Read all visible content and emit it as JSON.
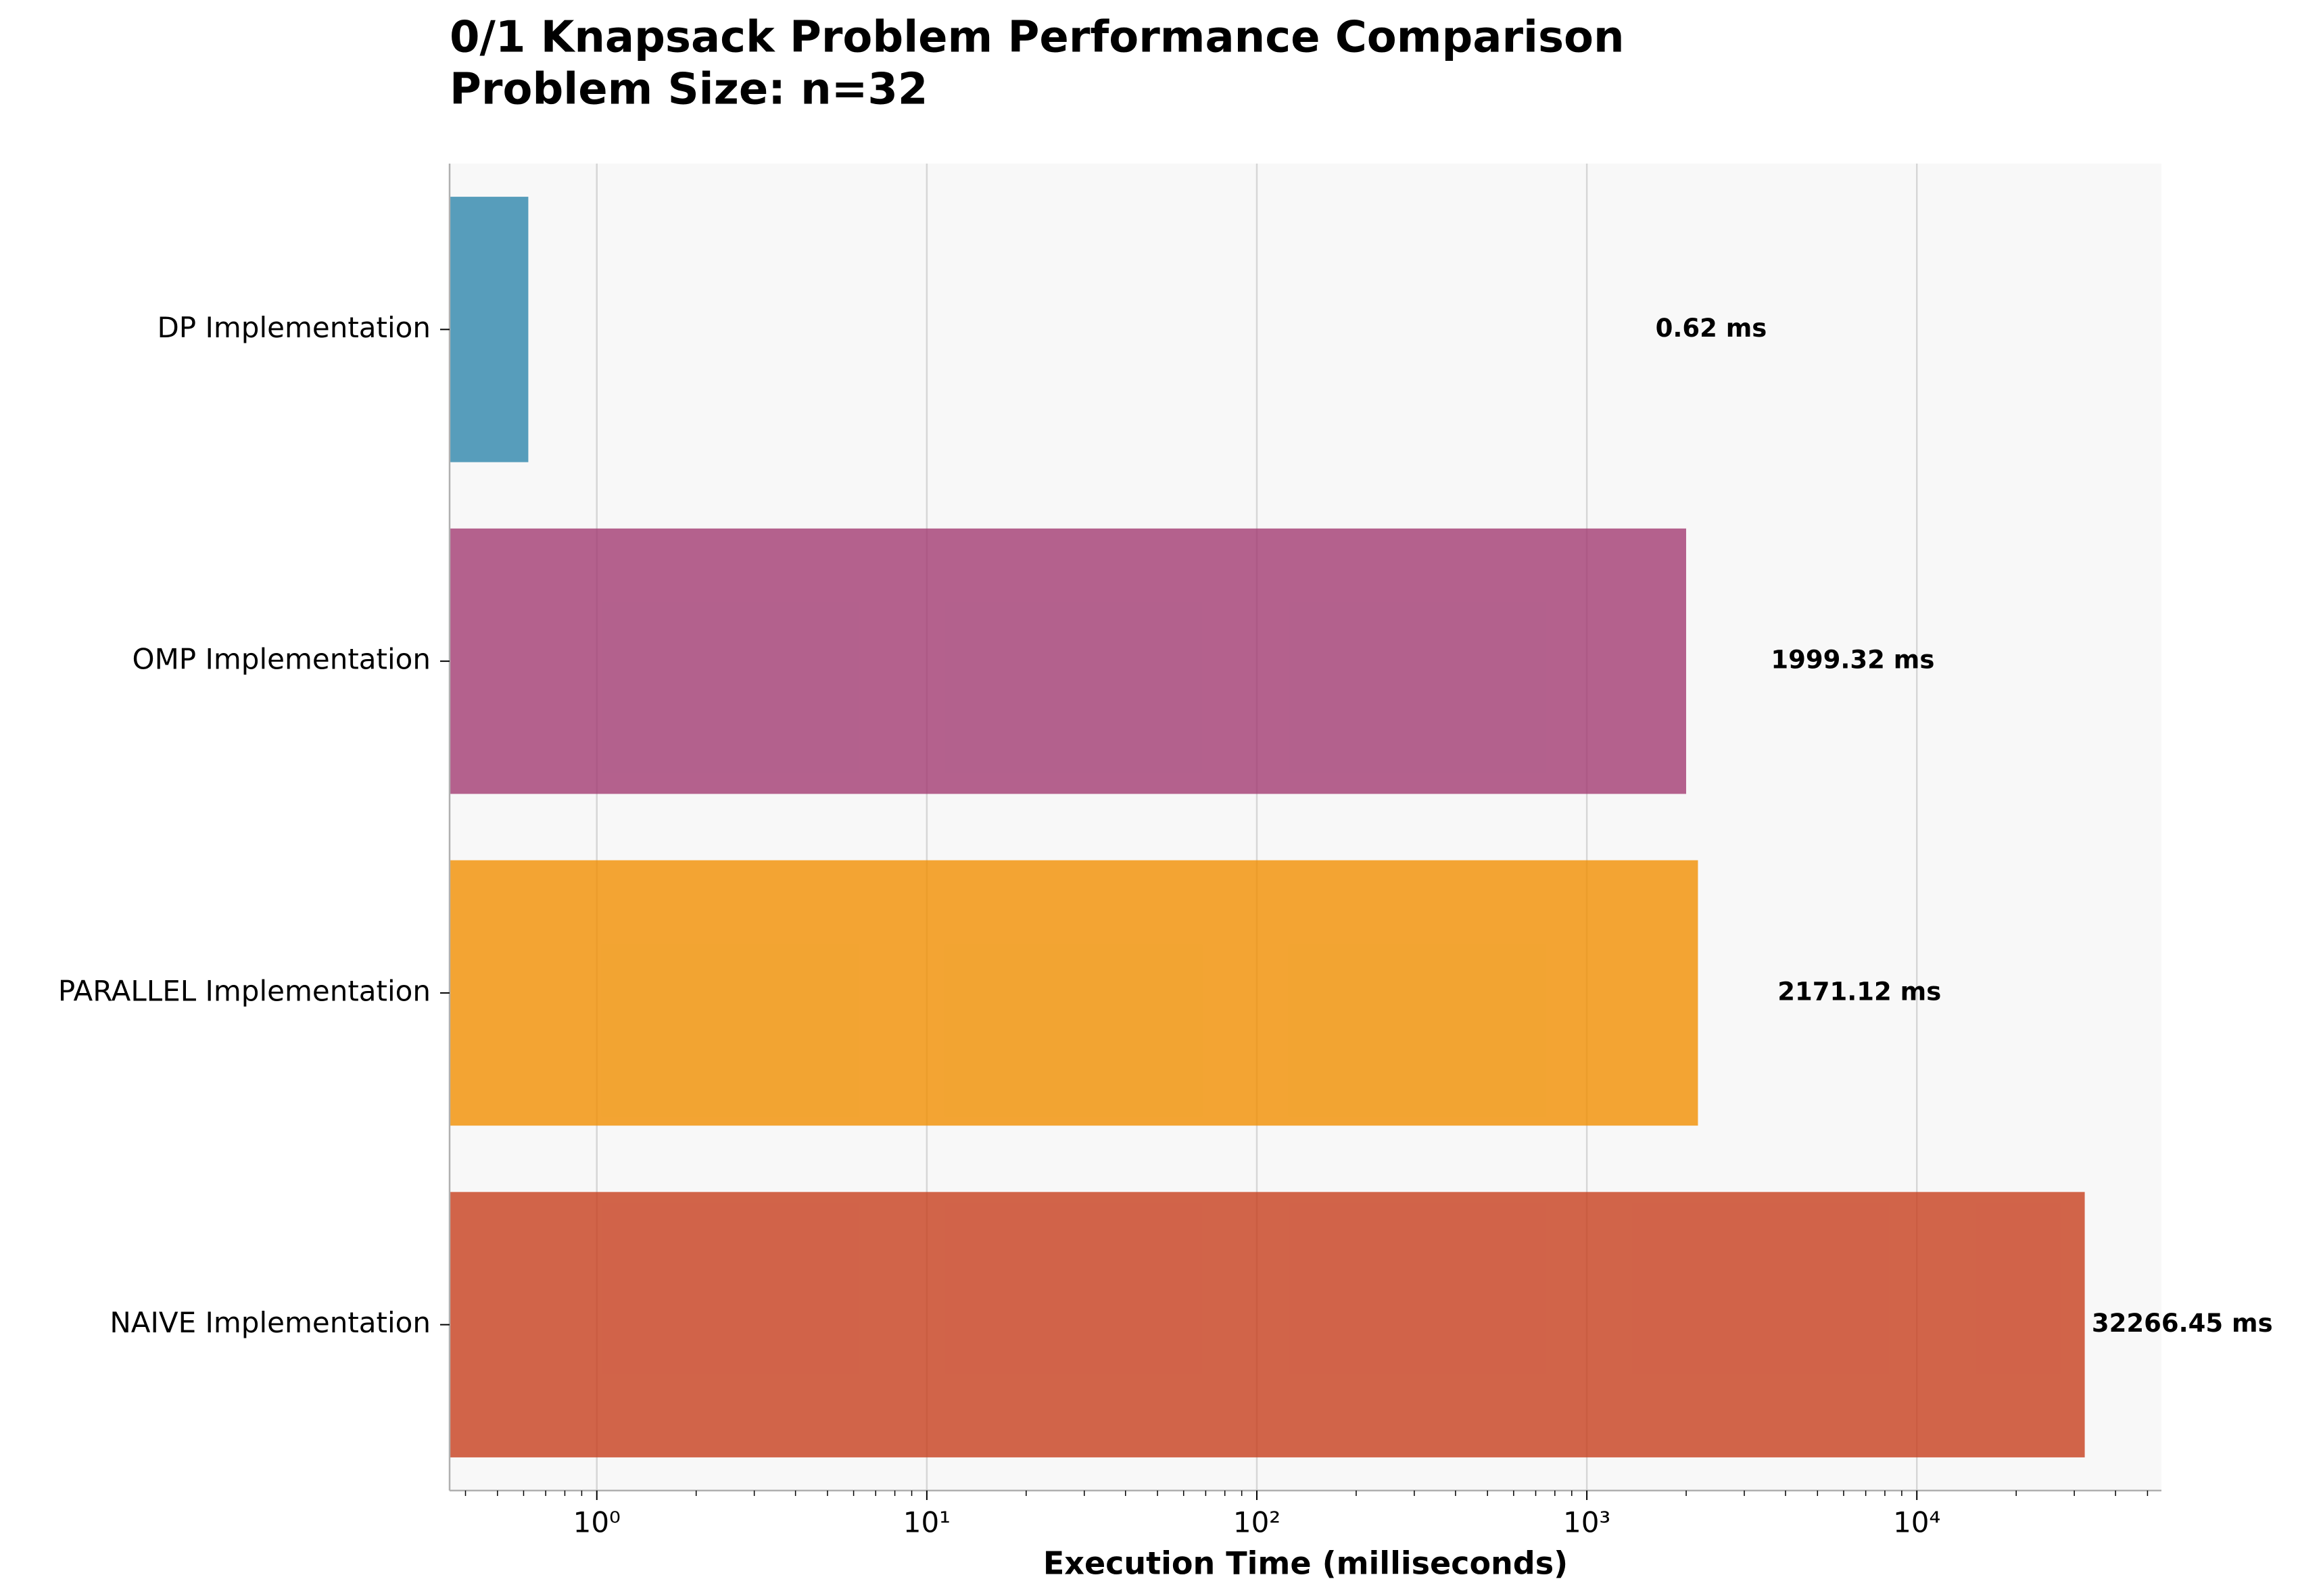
{
  "chart_data": {
    "type": "barh",
    "title": "0/1 Knapsack Problem Performance Comparison",
    "subtitle": "Problem Size: n=32",
    "xlabel": "Execution Time (milliseconds)",
    "categories": [
      "DP Implementation",
      "OMP Implementation",
      "PARALLEL Implementation",
      "NAIVE Implementation"
    ],
    "values": [
      0.62,
      1999.32,
      2171.12,
      32266.45
    ],
    "value_labels": [
      "0.62 ms",
      "1999.32 ms",
      "2171.12 ms",
      "32266.45 ms"
    ],
    "colors": [
      "#2E86AB",
      "#A23B72",
      "#F18F01",
      "#C73E1D"
    ],
    "xscale": "log",
    "xlim": [
      0.358,
      55100
    ],
    "xticks": [
      {
        "value": 1,
        "label": "10⁰"
      },
      {
        "value": 10,
        "label": "10¹"
      },
      {
        "value": 100,
        "label": "10²"
      },
      {
        "value": 1000,
        "label": "10³"
      },
      {
        "value": 10000,
        "label": "10⁴"
      }
    ],
    "xminorticks": [
      0.4,
      0.5,
      0.6,
      0.7,
      0.8,
      0.9,
      2,
      3,
      4,
      5,
      6,
      7,
      8,
      9,
      20,
      30,
      40,
      50,
      60,
      70,
      80,
      90,
      200,
      300,
      400,
      500,
      600,
      700,
      800,
      900,
      2000,
      3000,
      4000,
      5000,
      6000,
      7000,
      8000,
      9000,
      20000,
      30000,
      40000,
      50000
    ],
    "grid": true
  }
}
